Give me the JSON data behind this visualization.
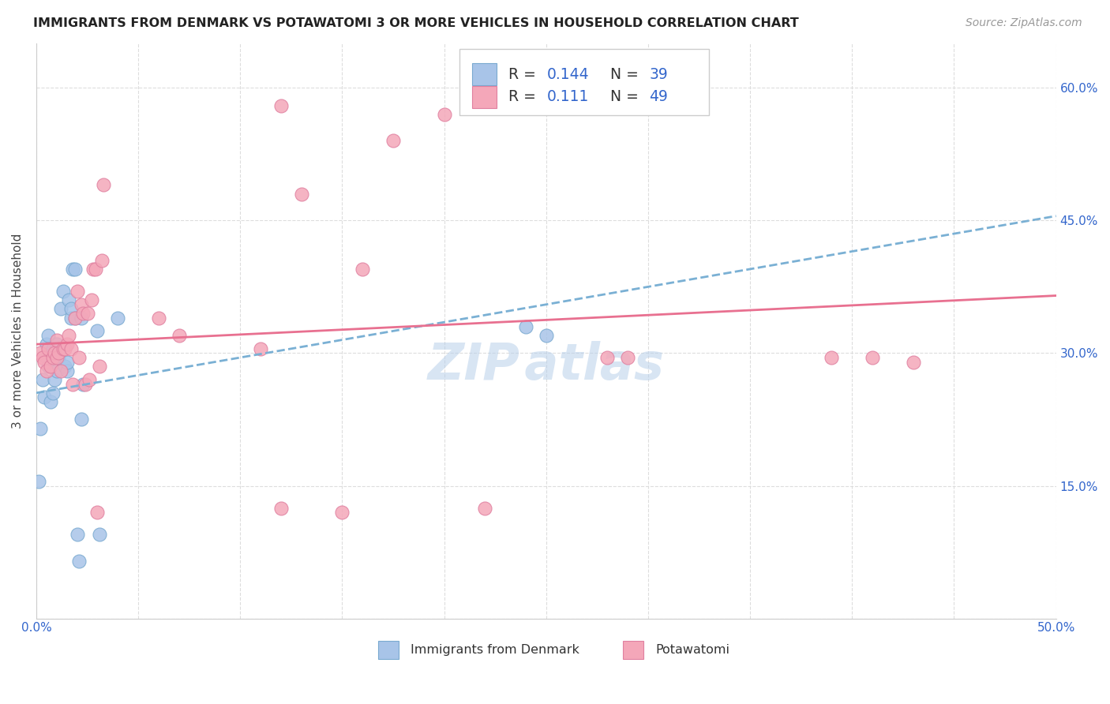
{
  "title": "IMMIGRANTS FROM DENMARK VS POTAWATOMI 3 OR MORE VEHICLES IN HOUSEHOLD CORRELATION CHART",
  "source": "Source: ZipAtlas.com",
  "ylabel": "3 or more Vehicles in Household",
  "xmin": 0.0,
  "xmax": 0.5,
  "ymin": 0.0,
  "ymax": 0.65,
  "xticks": [
    0.0,
    0.05,
    0.1,
    0.15,
    0.2,
    0.25,
    0.3,
    0.35,
    0.4,
    0.45,
    0.5
  ],
  "ytick_positions": [
    0.0,
    0.15,
    0.3,
    0.45,
    0.6
  ],
  "ytick_labels": [
    "",
    "15.0%",
    "30.0%",
    "45.0%",
    "60.0%"
  ],
  "legend_R1": "0.144",
  "legend_N1": "39",
  "legend_R2": "0.111",
  "legend_N2": "49",
  "blue_color": "#a8c4e8",
  "pink_color": "#f4a7b9",
  "blue_edge": "#7aaad0",
  "pink_edge": "#e080a0",
  "trend_blue_color": "#7ab0d4",
  "trend_pink_color": "#e87090",
  "blue_scatter_x": [
    0.001,
    0.002,
    0.003,
    0.004,
    0.005,
    0.005,
    0.006,
    0.006,
    0.007,
    0.007,
    0.008,
    0.008,
    0.009,
    0.009,
    0.01,
    0.01,
    0.011,
    0.011,
    0.012,
    0.013,
    0.014,
    0.015,
    0.015,
    0.016,
    0.017,
    0.017,
    0.018,
    0.019,
    0.019,
    0.02,
    0.021,
    0.022,
    0.022,
    0.023,
    0.03,
    0.031,
    0.04,
    0.24,
    0.25
  ],
  "blue_scatter_y": [
    0.155,
    0.215,
    0.27,
    0.25,
    0.295,
    0.31,
    0.285,
    0.32,
    0.245,
    0.3,
    0.255,
    0.305,
    0.29,
    0.27,
    0.28,
    0.31,
    0.295,
    0.3,
    0.35,
    0.37,
    0.285,
    0.28,
    0.29,
    0.36,
    0.34,
    0.35,
    0.395,
    0.395,
    0.34,
    0.095,
    0.065,
    0.225,
    0.34,
    0.265,
    0.325,
    0.095,
    0.34,
    0.33,
    0.32
  ],
  "pink_scatter_x": [
    0.002,
    0.003,
    0.004,
    0.005,
    0.006,
    0.007,
    0.008,
    0.009,
    0.01,
    0.01,
    0.011,
    0.012,
    0.013,
    0.014,
    0.015,
    0.016,
    0.017,
    0.018,
    0.019,
    0.02,
    0.021,
    0.022,
    0.023,
    0.024,
    0.025,
    0.026,
    0.027,
    0.028,
    0.029,
    0.03,
    0.031,
    0.032,
    0.033,
    0.06,
    0.07,
    0.11,
    0.12,
    0.13,
    0.16,
    0.175,
    0.2,
    0.22,
    0.28,
    0.39,
    0.41,
    0.43,
    0.15,
    0.29,
    0.12
  ],
  "pink_scatter_y": [
    0.3,
    0.295,
    0.29,
    0.28,
    0.305,
    0.285,
    0.295,
    0.3,
    0.295,
    0.315,
    0.3,
    0.28,
    0.305,
    0.305,
    0.31,
    0.32,
    0.305,
    0.265,
    0.34,
    0.37,
    0.295,
    0.355,
    0.345,
    0.265,
    0.345,
    0.27,
    0.36,
    0.395,
    0.395,
    0.12,
    0.285,
    0.405,
    0.49,
    0.34,
    0.32,
    0.305,
    0.125,
    0.48,
    0.395,
    0.54,
    0.57,
    0.125,
    0.295,
    0.295,
    0.295,
    0.29,
    0.12,
    0.295,
    0.58
  ],
  "blue_trend_x0": 0.0,
  "blue_trend_x1": 0.5,
  "blue_trend_y0": 0.255,
  "blue_trend_y1": 0.455,
  "pink_trend_x0": 0.0,
  "pink_trend_x1": 0.5,
  "pink_trend_y0": 0.31,
  "pink_trend_y1": 0.365
}
